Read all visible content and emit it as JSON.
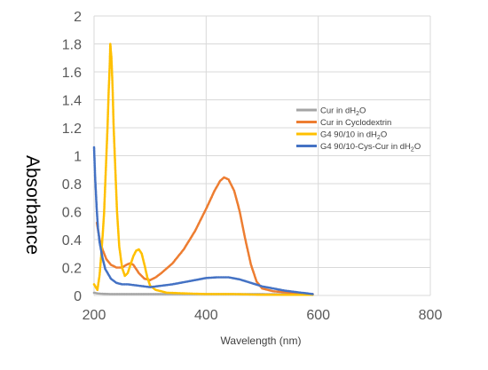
{
  "chart_data": {
    "type": "scatter",
    "title": "",
    "xlabel": "Wavelength (nm)",
    "ylabel": "Absorbance",
    "xlim": [
      200,
      800
    ],
    "ylim": [
      0,
      2
    ],
    "xticks": [
      200,
      400,
      600,
      800
    ],
    "yticks": [
      0,
      0.2,
      0.4,
      0.6,
      0.8,
      1,
      1.2,
      1.4,
      1.6,
      1.8,
      2
    ],
    "grid": true,
    "legend_position": "right",
    "series": [
      {
        "name": "Cur in dH₂O",
        "label_main": "Cur in dH",
        "label_sub": "2",
        "label_tail": "O",
        "color": "#a5a5a5",
        "points": [
          [
            200,
            0.02
          ],
          [
            205,
            0.015
          ],
          [
            215,
            0.012
          ],
          [
            230,
            0.01
          ],
          [
            250,
            0.01
          ],
          [
            300,
            0.01
          ],
          [
            350,
            0.01
          ],
          [
            400,
            0.01
          ],
          [
            450,
            0.01
          ],
          [
            500,
            0.01
          ],
          [
            550,
            0.008
          ],
          [
            590,
            0.008
          ]
        ]
      },
      {
        "name": "Cur in Cyclodextrin",
        "label_main": "Cur in Cyclodextrin",
        "label_sub": "",
        "label_tail": "",
        "color": "#ed7d31",
        "points": [
          [
            205,
            0.52
          ],
          [
            210,
            0.4
          ],
          [
            215,
            0.33
          ],
          [
            222,
            0.26
          ],
          [
            230,
            0.22
          ],
          [
            240,
            0.2
          ],
          [
            250,
            0.2
          ],
          [
            258,
            0.22
          ],
          [
            264,
            0.23
          ],
          [
            270,
            0.22
          ],
          [
            280,
            0.16
          ],
          [
            290,
            0.12
          ],
          [
            300,
            0.11
          ],
          [
            310,
            0.13
          ],
          [
            320,
            0.16
          ],
          [
            340,
            0.23
          ],
          [
            360,
            0.33
          ],
          [
            380,
            0.46
          ],
          [
            400,
            0.62
          ],
          [
            415,
            0.75
          ],
          [
            425,
            0.82
          ],
          [
            432,
            0.845
          ],
          [
            440,
            0.83
          ],
          [
            450,
            0.75
          ],
          [
            460,
            0.6
          ],
          [
            470,
            0.4
          ],
          [
            480,
            0.22
          ],
          [
            490,
            0.1
          ],
          [
            500,
            0.05
          ],
          [
            520,
            0.03
          ],
          [
            550,
            0.02
          ],
          [
            580,
            0.01
          ],
          [
            590,
            0.01
          ]
        ]
      },
      {
        "name": "G4 90/10 in dH₂O",
        "label_main": "G4 90/10 in dH",
        "label_sub": "2",
        "label_tail": "O",
        "color": "#ffc000",
        "points": [
          [
            200,
            0.08
          ],
          [
            203,
            0.06
          ],
          [
            206,
            0.04
          ],
          [
            210,
            0.15
          ],
          [
            214,
            0.35
          ],
          [
            218,
            0.6
          ],
          [
            221,
            0.9
          ],
          [
            224,
            1.2
          ],
          [
            226,
            1.45
          ],
          [
            228,
            1.65
          ],
          [
            229,
            1.8
          ],
          [
            231,
            1.7
          ],
          [
            233,
            1.5
          ],
          [
            235,
            1.2
          ],
          [
            238,
            0.9
          ],
          [
            241,
            0.6
          ],
          [
            245,
            0.35
          ],
          [
            250,
            0.2
          ],
          [
            255,
            0.14
          ],
          [
            260,
            0.16
          ],
          [
            265,
            0.22
          ],
          [
            270,
            0.28
          ],
          [
            275,
            0.32
          ],
          [
            280,
            0.33
          ],
          [
            285,
            0.3
          ],
          [
            290,
            0.22
          ],
          [
            295,
            0.13
          ],
          [
            300,
            0.07
          ],
          [
            310,
            0.04
          ],
          [
            330,
            0.02
          ],
          [
            360,
            0.015
          ],
          [
            400,
            0.01
          ],
          [
            450,
            0.01
          ],
          [
            500,
            0.005
          ],
          [
            550,
            0.005
          ],
          [
            590,
            0.005
          ]
        ]
      },
      {
        "name": "G4 90/10-Cys-Cur in dH₂O",
        "label_main": "G4 90/10-Cys-Cur in dH",
        "label_sub": "2",
        "label_tail": "O",
        "color": "#4472c4",
        "points": [
          [
            200,
            1.06
          ],
          [
            201,
            0.95
          ],
          [
            202,
            0.84
          ],
          [
            203,
            0.76
          ],
          [
            204,
            0.68
          ],
          [
            205,
            0.6
          ],
          [
            207,
            0.48
          ],
          [
            210,
            0.38
          ],
          [
            215,
            0.27
          ],
          [
            220,
            0.19
          ],
          [
            230,
            0.12
          ],
          [
            240,
            0.09
          ],
          [
            250,
            0.08
          ],
          [
            260,
            0.08
          ],
          [
            270,
            0.075
          ],
          [
            280,
            0.07
          ],
          [
            300,
            0.06
          ],
          [
            320,
            0.07
          ],
          [
            340,
            0.08
          ],
          [
            360,
            0.095
          ],
          [
            380,
            0.11
          ],
          [
            400,
            0.125
          ],
          [
            420,
            0.13
          ],
          [
            440,
            0.13
          ],
          [
            460,
            0.115
          ],
          [
            480,
            0.09
          ],
          [
            500,
            0.065
          ],
          [
            520,
            0.05
          ],
          [
            540,
            0.035
          ],
          [
            560,
            0.025
          ],
          [
            580,
            0.015
          ],
          [
            590,
            0.01
          ]
        ]
      }
    ]
  }
}
